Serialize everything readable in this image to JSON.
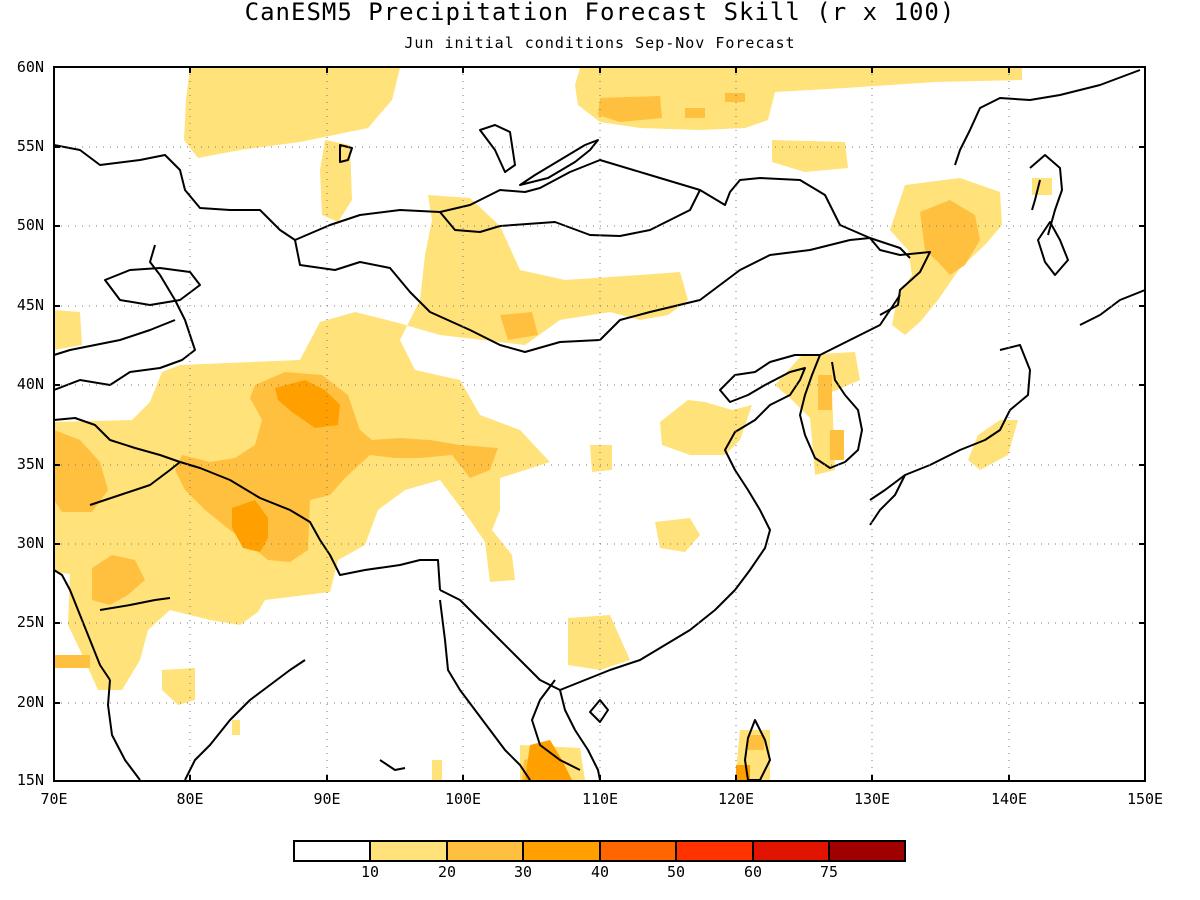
{
  "title": "CanESM5 Precipitation Forecast Skill (r x 100)",
  "subtitle": "Jun initial conditions  Sep-Nov Forecast",
  "map": {
    "lon_range": [
      70,
      150
    ],
    "lat_range": [
      15,
      60
    ],
    "lat_labels": [
      "60N",
      "55N",
      "50N",
      "45N",
      "40N",
      "35N",
      "30N",
      "25N",
      "20N",
      "15N"
    ],
    "lon_labels": [
      "70E",
      "80E",
      "90E",
      "100E",
      "110E",
      "120E",
      "130E",
      "140E",
      "150E"
    ],
    "gridlines": "dotted"
  },
  "colorbar": {
    "labels": [
      "10",
      "20",
      "30",
      "40",
      "50",
      "60",
      "75"
    ],
    "colors": [
      "#ffffff",
      "#ffe27a",
      "#ffc040",
      "#ff9f00",
      "#ff6600",
      "#ff3200",
      "#e11400",
      "#a00000"
    ]
  },
  "colors": {
    "c10": "#ffe27a",
    "c20": "#ffc040",
    "c30": "#ff9f00",
    "coast": "#000000"
  }
}
